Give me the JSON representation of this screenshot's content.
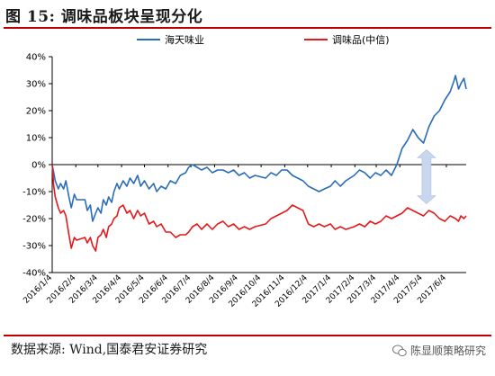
{
  "figure": {
    "title": "图 15:  调味品板块呈现分化",
    "source": "数据来源:  Wind,国泰君安证券研究",
    "watermark": "陈显顺策略研究"
  },
  "colors": {
    "series_a": "#2b6cb8",
    "series_b": "#e31a1c",
    "arrow": "#c8d7ee",
    "rule": "#c00000"
  },
  "chart_data": {
    "type": "line",
    "title": "",
    "xlabel": "",
    "ylabel": "",
    "ylim": [
      -0.4,
      0.4
    ],
    "ytick_values": [
      -0.4,
      -0.3,
      -0.2,
      -0.1,
      0.0,
      0.1,
      0.2,
      0.3,
      0.4
    ],
    "ytick_labels": [
      "-40%",
      "-30%",
      "-20%",
      "-10%",
      "0%",
      "10%",
      "20%",
      "30%",
      "40%"
    ],
    "x_tick_labels": [
      "2016/1/4",
      "2016/2/4",
      "2016/3/4",
      "2016/4/4",
      "2016/5/4",
      "2016/6/4",
      "2016/7/4",
      "2016/8/4",
      "2016/9/4",
      "2016/10/4",
      "2016/11/4",
      "2016/12/4",
      "2017/1/4",
      "2017/2/4",
      "2017/3/4",
      "2017/4/4",
      "2017/5/4",
      "2017/6/4"
    ],
    "x_range": [
      "2016/1/4",
      "2017/6/30"
    ],
    "grid": false,
    "legend_position": "top",
    "annotation": "double-headed arrow spanning the gap between the two series in May 2017",
    "series": [
      {
        "name": "海天味业",
        "color": "#2b6cb8",
        "points": [
          [
            "2016/1/4",
            0.0
          ],
          [
            "2016/1/8",
            -0.06
          ],
          [
            "2016/1/12",
            -0.09
          ],
          [
            "2016/1/15",
            -0.07
          ],
          [
            "2016/1/19",
            -0.09
          ],
          [
            "2016/1/22",
            -0.06
          ],
          [
            "2016/1/26",
            -0.12
          ],
          [
            "2016/1/29",
            -0.16
          ],
          [
            "2016/2/2",
            -0.11
          ],
          [
            "2016/2/5",
            -0.13
          ],
          [
            "2016/2/16",
            -0.13
          ],
          [
            "2016/2/19",
            -0.17
          ],
          [
            "2016/2/23",
            -0.15
          ],
          [
            "2016/2/26",
            -0.21
          ],
          [
            "2016/3/1",
            -0.18
          ],
          [
            "2016/3/4",
            -0.16
          ],
          [
            "2016/3/8",
            -0.18
          ],
          [
            "2016/3/11",
            -0.13
          ],
          [
            "2016/3/15",
            -0.15
          ],
          [
            "2016/3/18",
            -0.12
          ],
          [
            "2016/3/22",
            -0.14
          ],
          [
            "2016/3/25",
            -0.1
          ],
          [
            "2016/3/29",
            -0.07
          ],
          [
            "2016/4/1",
            -0.09
          ],
          [
            "2016/4/6",
            -0.06
          ],
          [
            "2016/4/11",
            -0.08
          ],
          [
            "2016/4/15",
            -0.05
          ],
          [
            "2016/4/20",
            -0.07
          ],
          [
            "2016/4/25",
            -0.04
          ],
          [
            "2016/4/29",
            -0.08
          ],
          [
            "2016/5/4",
            -0.06
          ],
          [
            "2016/5/10",
            -0.09
          ],
          [
            "2016/5/16",
            -0.07
          ],
          [
            "2016/5/20",
            -0.1
          ],
          [
            "2016/5/26",
            -0.08
          ],
          [
            "2016/6/1",
            -0.09
          ],
          [
            "2016/6/7",
            -0.06
          ],
          [
            "2016/6/14",
            -0.07
          ],
          [
            "2016/6/20",
            -0.04
          ],
          [
            "2016/6/27",
            -0.03
          ],
          [
            "2016/7/1",
            -0.01
          ],
          [
            "2016/7/6",
            0.0
          ],
          [
            "2016/7/12",
            -0.01
          ],
          [
            "2016/7/18",
            -0.02
          ],
          [
            "2016/7/25",
            -0.01
          ],
          [
            "2016/8/1",
            -0.03
          ],
          [
            "2016/8/8",
            -0.02
          ],
          [
            "2016/8/15",
            -0.02
          ],
          [
            "2016/8/22",
            -0.03
          ],
          [
            "2016/8/29",
            -0.02
          ],
          [
            "2016/9/5",
            -0.04
          ],
          [
            "2016/9/12",
            -0.03
          ],
          [
            "2016/9/19",
            -0.05
          ],
          [
            "2016/9/26",
            -0.04
          ],
          [
            "2016/10/10",
            -0.05
          ],
          [
            "2016/10/17",
            -0.03
          ],
          [
            "2016/10/24",
            -0.04
          ],
          [
            "2016/10/31",
            -0.02
          ],
          [
            "2016/11/7",
            -0.02
          ],
          [
            "2016/11/14",
            -0.04
          ],
          [
            "2016/11/21",
            -0.05
          ],
          [
            "2016/11/28",
            -0.06
          ],
          [
            "2016/12/5",
            -0.08
          ],
          [
            "2016/12/12",
            -0.09
          ],
          [
            "2016/12/19",
            -0.1
          ],
          [
            "2016/12/26",
            -0.09
          ],
          [
            "2017/1/3",
            -0.08
          ],
          [
            "2017/1/9",
            -0.06
          ],
          [
            "2017/1/16",
            -0.08
          ],
          [
            "2017/1/23",
            -0.06
          ],
          [
            "2017/2/3",
            -0.04
          ],
          [
            "2017/2/10",
            -0.02
          ],
          [
            "2017/2/17",
            -0.03
          ],
          [
            "2017/2/24",
            -0.05
          ],
          [
            "2017/3/3",
            -0.03
          ],
          [
            "2017/3/10",
            -0.04
          ],
          [
            "2017/3/17",
            -0.02
          ],
          [
            "2017/3/24",
            -0.04
          ],
          [
            "2017/3/31",
            0.0
          ],
          [
            "2017/4/7",
            0.06
          ],
          [
            "2017/4/14",
            0.09
          ],
          [
            "2017/4/21",
            0.13
          ],
          [
            "2017/4/28",
            0.1
          ],
          [
            "2017/5/5",
            0.08
          ],
          [
            "2017/5/12",
            0.14
          ],
          [
            "2017/5/19",
            0.18
          ],
          [
            "2017/5/26",
            0.2
          ],
          [
            "2017/6/2",
            0.24
          ],
          [
            "2017/6/9",
            0.27
          ],
          [
            "2017/6/14",
            0.31
          ],
          [
            "2017/6/16",
            0.33
          ],
          [
            "2017/6/20",
            0.28
          ],
          [
            "2017/6/23",
            0.3
          ],
          [
            "2017/6/27",
            0.32
          ],
          [
            "2017/6/30",
            0.28
          ]
        ]
      },
      {
        "name": "调味品(中信)",
        "color": "#e31a1c",
        "points": [
          [
            "2016/1/4",
            0.0
          ],
          [
            "2016/1/6",
            -0.08
          ],
          [
            "2016/1/8",
            -0.12
          ],
          [
            "2016/1/12",
            -0.16
          ],
          [
            "2016/1/15",
            -0.18
          ],
          [
            "2016/1/19",
            -0.17
          ],
          [
            "2016/1/22",
            -0.19
          ],
          [
            "2016/1/26",
            -0.26
          ],
          [
            "2016/1/29",
            -0.31
          ],
          [
            "2016/2/2",
            -0.27
          ],
          [
            "2016/2/5",
            -0.28
          ],
          [
            "2016/2/16",
            -0.27
          ],
          [
            "2016/2/19",
            -0.29
          ],
          [
            "2016/2/23",
            -0.27
          ],
          [
            "2016/2/26",
            -0.3
          ],
          [
            "2016/3/1",
            -0.32
          ],
          [
            "2016/3/4",
            -0.27
          ],
          [
            "2016/3/8",
            -0.26
          ],
          [
            "2016/3/11",
            -0.24
          ],
          [
            "2016/3/15",
            -0.27
          ],
          [
            "2016/3/18",
            -0.23
          ],
          [
            "2016/3/22",
            -0.22
          ],
          [
            "2016/3/25",
            -0.2
          ],
          [
            "2016/3/29",
            -0.19
          ],
          [
            "2016/4/1",
            -0.16
          ],
          [
            "2016/4/6",
            -0.15
          ],
          [
            "2016/4/11",
            -0.18
          ],
          [
            "2016/4/15",
            -0.17
          ],
          [
            "2016/4/20",
            -0.2
          ],
          [
            "2016/4/25",
            -0.17
          ],
          [
            "2016/4/29",
            -0.19
          ],
          [
            "2016/5/4",
            -0.18
          ],
          [
            "2016/5/10",
            -0.22
          ],
          [
            "2016/5/16",
            -0.21
          ],
          [
            "2016/5/20",
            -0.23
          ],
          [
            "2016/5/26",
            -0.22
          ],
          [
            "2016/6/1",
            -0.25
          ],
          [
            "2016/6/7",
            -0.25
          ],
          [
            "2016/6/14",
            -0.27
          ],
          [
            "2016/6/20",
            -0.26
          ],
          [
            "2016/6/27",
            -0.26
          ],
          [
            "2016/7/1",
            -0.25
          ],
          [
            "2016/7/6",
            -0.23
          ],
          [
            "2016/7/12",
            -0.22
          ],
          [
            "2016/7/18",
            -0.24
          ],
          [
            "2016/7/25",
            -0.22
          ],
          [
            "2016/8/1",
            -0.24
          ],
          [
            "2016/8/8",
            -0.22
          ],
          [
            "2016/8/15",
            -0.21
          ],
          [
            "2016/8/22",
            -0.23
          ],
          [
            "2016/8/29",
            -0.22
          ],
          [
            "2016/9/5",
            -0.24
          ],
          [
            "2016/9/12",
            -0.23
          ],
          [
            "2016/9/19",
            -0.24
          ],
          [
            "2016/9/26",
            -0.23
          ],
          [
            "2016/10/10",
            -0.22
          ],
          [
            "2016/10/17",
            -0.2
          ],
          [
            "2016/10/24",
            -0.19
          ],
          [
            "2016/10/31",
            -0.18
          ],
          [
            "2016/11/7",
            -0.17
          ],
          [
            "2016/11/14",
            -0.15
          ],
          [
            "2016/11/21",
            -0.16
          ],
          [
            "2016/11/28",
            -0.17
          ],
          [
            "2016/12/5",
            -0.22
          ],
          [
            "2016/12/12",
            -0.23
          ],
          [
            "2016/12/19",
            -0.22
          ],
          [
            "2016/12/26",
            -0.23
          ],
          [
            "2017/1/3",
            -0.22
          ],
          [
            "2017/1/9",
            -0.24
          ],
          [
            "2017/1/16",
            -0.23
          ],
          [
            "2017/1/23",
            -0.24
          ],
          [
            "2017/2/3",
            -0.23
          ],
          [
            "2017/2/10",
            -0.22
          ],
          [
            "2017/2/17",
            -0.23
          ],
          [
            "2017/2/24",
            -0.21
          ],
          [
            "2017/3/3",
            -0.22
          ],
          [
            "2017/3/10",
            -0.21
          ],
          [
            "2017/3/17",
            -0.19
          ],
          [
            "2017/3/24",
            -0.2
          ],
          [
            "2017/3/31",
            -0.19
          ],
          [
            "2017/4/7",
            -0.18
          ],
          [
            "2017/4/14",
            -0.16
          ],
          [
            "2017/4/21",
            -0.17
          ],
          [
            "2017/4/28",
            -0.18
          ],
          [
            "2017/5/5",
            -0.19
          ],
          [
            "2017/5/12",
            -0.17
          ],
          [
            "2017/5/19",
            -0.18
          ],
          [
            "2017/5/26",
            -0.2
          ],
          [
            "2017/6/2",
            -0.21
          ],
          [
            "2017/6/9",
            -0.19
          ],
          [
            "2017/6/16",
            -0.2
          ],
          [
            "2017/6/20",
            -0.21
          ],
          [
            "2017/6/23",
            -0.19
          ],
          [
            "2017/6/27",
            -0.2
          ],
          [
            "2017/6/30",
            -0.19
          ]
        ]
      }
    ]
  }
}
